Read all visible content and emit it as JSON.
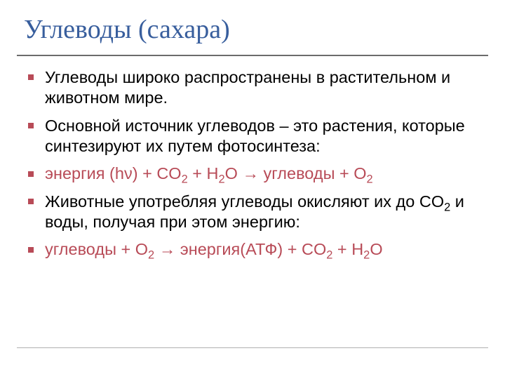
{
  "colors": {
    "title": "#385e9d",
    "divider": "#6b6b6b",
    "body": "#000000",
    "bullet": "#b84b57",
    "equation": "#b84b57",
    "footer_line": "#b0b0b0"
  },
  "title": "Углеводы (сахара)",
  "items": [
    {
      "type": "text",
      "text": "Углеводы широко распространены в растительном и животном мире."
    },
    {
      "type": "text",
      "text": "Основной источник углеводов – это растения, которые синтезируют их путем фотосинтеза:"
    },
    {
      "type": "equation",
      "parts": [
        {
          "t": "энергия (h"
        },
        {
          "t": "ν"
        },
        {
          "t": ") + CO"
        },
        {
          "sub": "2"
        },
        {
          "t": " + H"
        },
        {
          "sub": "2"
        },
        {
          "t": "O → углеводы + O"
        },
        {
          "sub": "2"
        }
      ]
    },
    {
      "type": "text_with_sub",
      "parts": [
        {
          "t": "Животные употребляя углеводы окисляют их до CO"
        },
        {
          "sub": "2"
        },
        {
          "t": " и воды, получая при этом энергию:"
        }
      ]
    },
    {
      "type": "equation",
      "parts": [
        {
          "t": "углеводы + O"
        },
        {
          "sub": "2"
        },
        {
          "t": " → энергия(АТФ) + CO"
        },
        {
          "sub": "2"
        },
        {
          "t": " + H"
        },
        {
          "sub": "2"
        },
        {
          "t": "O"
        }
      ]
    }
  ]
}
